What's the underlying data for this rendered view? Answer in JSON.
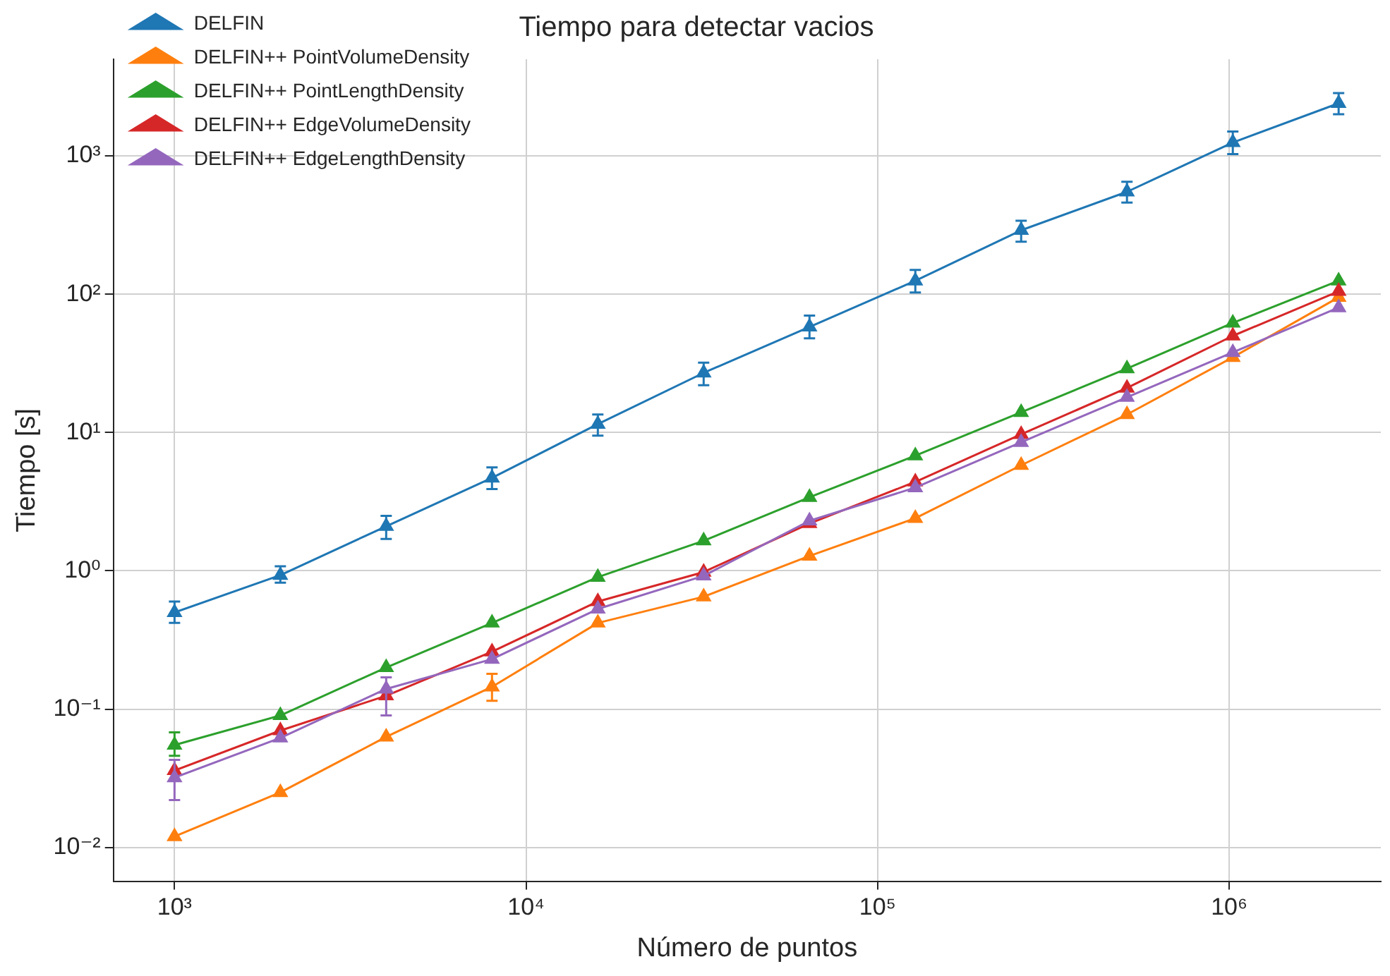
{
  "chart_data": {
    "type": "line",
    "title": "Tiempo para detectar vacios",
    "xlabel": "Número de puntos",
    "ylabel": "Tiempo [s]",
    "x": [
      1000,
      2000,
      4000,
      8000,
      16000,
      32000,
      64000,
      128000,
      256000,
      512000,
      1024000,
      2048000
    ],
    "series": [
      {
        "name": "DELFIN",
        "color": "#1f77b4",
        "values": [
          0.5,
          0.93,
          2.1,
          4.7,
          11.5,
          27,
          58,
          125,
          290,
          550,
          1250,
          2400
        ],
        "errors": [
          [
            0.42,
            0.6
          ],
          [
            0.82,
            1.08
          ],
          [
            1.7,
            2.5
          ],
          [
            3.9,
            5.6
          ],
          [
            9.5,
            13.5
          ],
          [
            22,
            32
          ],
          [
            48,
            70
          ],
          [
            103,
            150
          ],
          [
            240,
            340
          ],
          [
            460,
            650
          ],
          [
            1030,
            1500
          ],
          [
            2000,
            2850
          ]
        ]
      },
      {
        "name": "DELFIN++ PointVolumeDensity",
        "color": "#ff7f0e",
        "values": [
          0.012,
          0.025,
          0.063,
          0.145,
          0.42,
          0.65,
          1.28,
          2.4,
          5.8,
          13.5,
          35,
          95
        ],
        "errors": [
          null,
          null,
          null,
          [
            0.115,
            0.18
          ],
          null,
          null,
          null,
          null,
          null,
          null,
          null,
          null
        ]
      },
      {
        "name": "DELFIN++ PointLengthDensity",
        "color": "#2ca02c",
        "values": [
          0.055,
          0.09,
          0.2,
          0.42,
          0.9,
          1.65,
          3.4,
          6.8,
          14,
          29,
          62,
          125
        ],
        "errors": [
          [
            0.046,
            0.068
          ],
          null,
          null,
          null,
          null,
          null,
          null,
          null,
          null,
          null,
          null,
          null
        ]
      },
      {
        "name": "DELFIN++ EdgeVolumeDensity",
        "color": "#d62728",
        "values": [
          0.036,
          0.07,
          0.125,
          0.26,
          0.6,
          0.98,
          2.2,
          4.4,
          9.7,
          21,
          50,
          105
        ]
      },
      {
        "name": "DELFIN++ EdgeLengthDensity",
        "color": "#9467bd",
        "values": [
          0.032,
          0.062,
          0.14,
          0.23,
          0.53,
          0.92,
          2.3,
          4.0,
          8.5,
          18,
          38,
          80
        ],
        "errors": [
          [
            0.022,
            0.043
          ],
          null,
          [
            0.09,
            0.17
          ],
          null,
          null,
          null,
          null,
          null,
          null,
          null,
          null,
          null
        ]
      }
    ],
    "log": "xy",
    "xlim": [
      670,
      2700000
    ],
    "ylim": [
      0.0057,
      5000
    ],
    "xticks": [
      {
        "value": 1000,
        "label": "10³"
      },
      {
        "value": 10000,
        "label": "10⁴"
      },
      {
        "value": 100000,
        "label": "10⁵"
      },
      {
        "value": 1000000,
        "label": "10⁶"
      }
    ],
    "yticks": [
      {
        "value": 0.01,
        "label": "10⁻²"
      },
      {
        "value": 0.1,
        "label": "10⁻¹"
      },
      {
        "value": 1,
        "label": "10⁰"
      },
      {
        "value": 10,
        "label": "10¹"
      },
      {
        "value": 100,
        "label": "10²"
      },
      {
        "value": 1000,
        "label": "10³"
      }
    ],
    "grid": true,
    "legend": "top left",
    "marker": "triangle",
    "line_style": "solid"
  }
}
